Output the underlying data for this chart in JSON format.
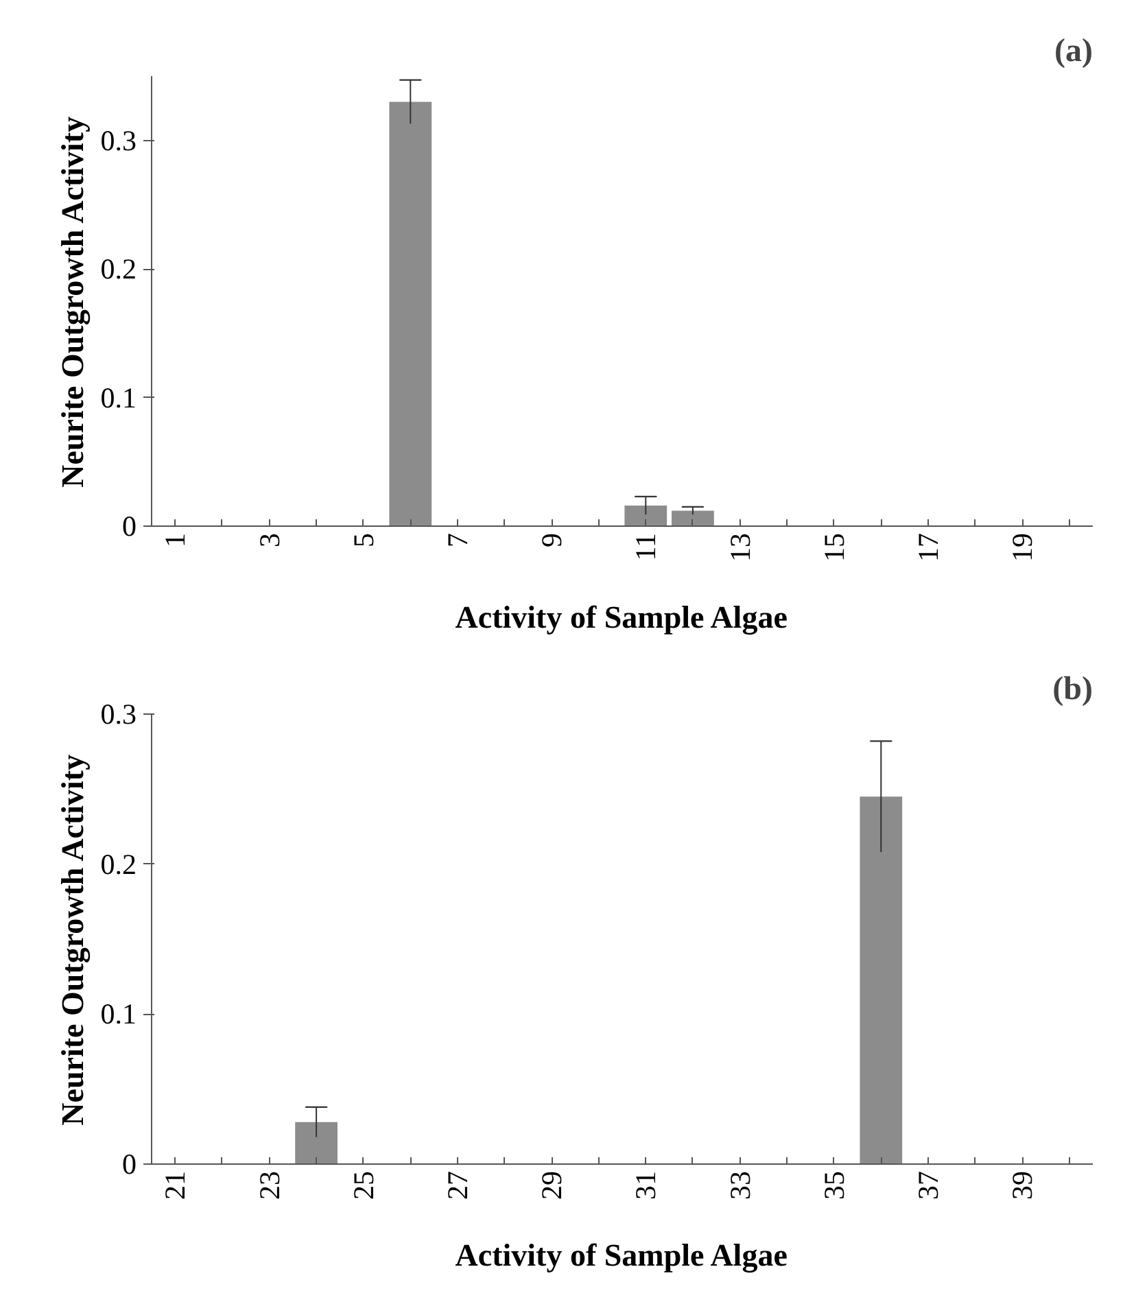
{
  "chart_data": [
    {
      "type": "bar",
      "annotations": [
        "(a)"
      ],
      "xlabel": "Activity of Sample Algae",
      "ylabel": "Neurite Outgrowth Activity",
      "categories": [
        "1",
        null,
        "3",
        null,
        "5",
        null,
        "7",
        null,
        "9",
        null,
        "11",
        null,
        "13",
        null,
        "15",
        null,
        "17",
        null,
        "19",
        null
      ],
      "values": [
        0,
        0,
        0,
        0,
        0,
        0.33,
        0,
        0,
        0,
        0,
        0.016,
        0.012,
        0,
        0,
        0,
        0,
        0,
        0,
        0,
        0
      ],
      "errors": [
        null,
        null,
        null,
        null,
        null,
        0.017,
        null,
        null,
        null,
        null,
        0.007,
        0.003,
        null,
        null,
        null,
        null,
        null,
        null,
        null,
        null
      ],
      "color": "#8c8c8c",
      "ylim": [
        0,
        0.35
      ],
      "yticks": [
        0,
        0.1,
        0.2,
        0.3
      ],
      "grid": false
    },
    {
      "type": "bar",
      "annotations": [
        "(b)"
      ],
      "xlabel": "Activity of Sample Algae",
      "ylabel": "Neurite Outgrowth Activity",
      "categories": [
        "21",
        null,
        "23",
        null,
        "25",
        null,
        "27",
        null,
        "29",
        null,
        "31",
        null,
        "33",
        null,
        "35",
        null,
        "37",
        null,
        "39",
        null
      ],
      "values": [
        0,
        0,
        0,
        0.028,
        0,
        0,
        0,
        0,
        0,
        0,
        0,
        0,
        0,
        0,
        0,
        0.245,
        0,
        0,
        0,
        0
      ],
      "errors": [
        null,
        null,
        null,
        0.01,
        null,
        null,
        null,
        null,
        null,
        null,
        null,
        null,
        null,
        null,
        null,
        0.037,
        null,
        null,
        null,
        null
      ],
      "color": "#8c8c8c",
      "ylim": [
        0,
        0.3
      ],
      "yticks": [
        0,
        0.1,
        0.2,
        0.3
      ],
      "grid": false
    }
  ]
}
